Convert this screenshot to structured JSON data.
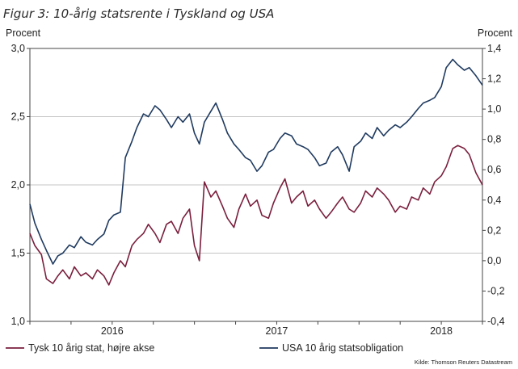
{
  "chart_data": {
    "type": "line",
    "title": "Figur 3: 10-årig statsrente i Tyskland og USA",
    "ylabel_left": "Procent",
    "ylabel_right": "Procent",
    "ylim_left": [
      1.0,
      3.0
    ],
    "ylim_right": [
      -0.4,
      1.4
    ],
    "yticks_left": [
      "1,0",
      "1,5",
      "2,0",
      "2,5",
      "3,0"
    ],
    "yticks_right": [
      "-0,4",
      "-0,2",
      "0,0",
      "0,2",
      "0,4",
      "0,6",
      "0,8",
      "1,0",
      "1,2",
      "1,4"
    ],
    "xlim": [
      2015.5,
      2018.25
    ],
    "x_labels": [
      {
        "label": "2016",
        "x": 2016.0
      },
      {
        "label": "2017",
        "x": 2017.0
      },
      {
        "label": "2018",
        "x": 2018.0
      }
    ],
    "x_ticks": [
      2015.5,
      2015.75,
      2016.0,
      2016.25,
      2016.5,
      2016.75,
      2017.0,
      2017.25,
      2017.5,
      2017.75,
      2018.0,
      2018.25
    ],
    "grid": true,
    "source": "Kilde: Thomson Reuters Datastream",
    "series": [
      {
        "name": "Tysk 10 årig stat, højre akse",
        "axis": "right",
        "color": "#7a1f3d",
        "x": [
          2015.5,
          2015.53,
          2015.57,
          2015.6,
          2015.64,
          2015.67,
          2015.7,
          2015.74,
          2015.77,
          2015.81,
          2015.84,
          2015.88,
          2015.91,
          2015.95,
          2015.98,
          2016.01,
          2016.05,
          2016.08,
          2016.12,
          2016.15,
          2016.19,
          2016.22,
          2016.26,
          2016.29,
          2016.33,
          2016.36,
          2016.4,
          2016.43,
          2016.47,
          2016.5,
          2016.53,
          2016.56,
          2016.6,
          2016.63,
          2016.67,
          2016.7,
          2016.74,
          2016.77,
          2016.81,
          2016.84,
          2016.88,
          2016.91,
          2016.95,
          2016.98,
          2017.02,
          2017.05,
          2017.09,
          2017.12,
          2017.16,
          2017.19,
          2017.23,
          2017.26,
          2017.3,
          2017.33,
          2017.37,
          2017.4,
          2017.44,
          2017.47,
          2017.51,
          2017.54,
          2017.58,
          2017.61,
          2017.65,
          2017.68,
          2017.72,
          2017.75,
          2017.79,
          2017.82,
          2017.86,
          2017.89,
          2017.93,
          2017.96,
          2018.0,
          2018.03,
          2018.07,
          2018.1,
          2018.14,
          2018.17,
          2018.21,
          2018.25
        ],
        "values": [
          0.18,
          0.1,
          0.04,
          -0.12,
          -0.15,
          -0.1,
          -0.06,
          -0.12,
          -0.04,
          -0.1,
          -0.08,
          -0.12,
          -0.06,
          -0.1,
          -0.16,
          -0.08,
          0.0,
          -0.04,
          0.1,
          0.14,
          0.18,
          0.24,
          0.18,
          0.12,
          0.24,
          0.26,
          0.18,
          0.28,
          0.34,
          0.1,
          0.0,
          0.52,
          0.42,
          0.46,
          0.36,
          0.28,
          0.22,
          0.34,
          0.44,
          0.36,
          0.4,
          0.3,
          0.28,
          0.38,
          0.48,
          0.54,
          0.38,
          0.42,
          0.46,
          0.36,
          0.4,
          0.34,
          0.28,
          0.32,
          0.38,
          0.42,
          0.34,
          0.32,
          0.38,
          0.46,
          0.42,
          0.48,
          0.44,
          0.4,
          0.32,
          0.36,
          0.34,
          0.42,
          0.4,
          0.48,
          0.44,
          0.52,
          0.56,
          0.62,
          0.74,
          0.76,
          0.74,
          0.7,
          0.58,
          0.5
        ]
      },
      {
        "name": "USA 10 årig statsobligation",
        "axis": "left",
        "color": "#1f3a5f",
        "x": [
          2015.5,
          2015.53,
          2015.57,
          2015.6,
          2015.64,
          2015.67,
          2015.7,
          2015.74,
          2015.77,
          2015.81,
          2015.84,
          2015.88,
          2015.91,
          2015.95,
          2015.98,
          2016.01,
          2016.05,
          2016.08,
          2016.12,
          2016.15,
          2016.19,
          2016.22,
          2016.26,
          2016.29,
          2016.33,
          2016.36,
          2016.4,
          2016.43,
          2016.47,
          2016.5,
          2016.53,
          2016.56,
          2016.6,
          2016.63,
          2016.67,
          2016.7,
          2016.74,
          2016.77,
          2016.81,
          2016.84,
          2016.88,
          2016.91,
          2016.95,
          2016.98,
          2017.02,
          2017.05,
          2017.09,
          2017.12,
          2017.16,
          2017.19,
          2017.23,
          2017.26,
          2017.3,
          2017.33,
          2017.37,
          2017.4,
          2017.44,
          2017.47,
          2017.51,
          2017.54,
          2017.58,
          2017.61,
          2017.65,
          2017.68,
          2017.72,
          2017.75,
          2017.79,
          2017.82,
          2017.86,
          2017.89,
          2017.93,
          2017.96,
          2018.0,
          2018.03,
          2018.07,
          2018.1,
          2018.14,
          2018.17,
          2018.21,
          2018.25
        ],
        "values": [
          1.86,
          1.72,
          1.6,
          1.52,
          1.42,
          1.48,
          1.5,
          1.56,
          1.54,
          1.62,
          1.58,
          1.56,
          1.6,
          1.64,
          1.74,
          1.78,
          1.8,
          2.2,
          2.32,
          2.42,
          2.52,
          2.5,
          2.58,
          2.55,
          2.48,
          2.42,
          2.5,
          2.46,
          2.52,
          2.38,
          2.3,
          2.46,
          2.54,
          2.6,
          2.48,
          2.38,
          2.3,
          2.26,
          2.2,
          2.18,
          2.1,
          2.14,
          2.24,
          2.26,
          2.34,
          2.38,
          2.36,
          2.3,
          2.28,
          2.26,
          2.2,
          2.14,
          2.16,
          2.24,
          2.28,
          2.22,
          2.1,
          2.28,
          2.32,
          2.38,
          2.34,
          2.42,
          2.36,
          2.4,
          2.44,
          2.42,
          2.46,
          2.5,
          2.56,
          2.6,
          2.62,
          2.64,
          2.72,
          2.86,
          2.92,
          2.88,
          2.84,
          2.86,
          2.8,
          2.73
        ]
      }
    ]
  }
}
